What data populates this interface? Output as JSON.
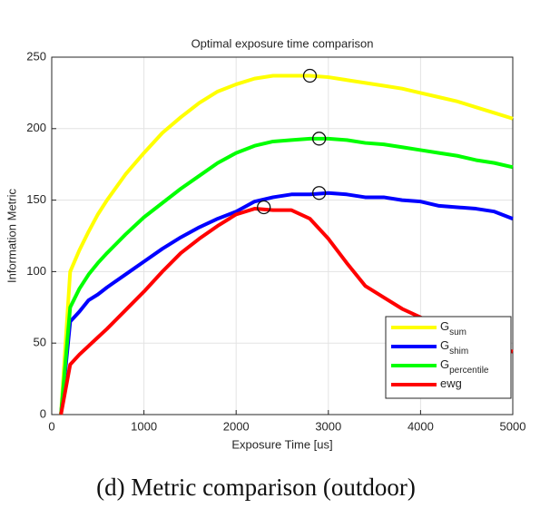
{
  "chart_data": {
    "type": "line",
    "title": "Optimal exposure time comparison",
    "x_label": "Exposure Time [us]",
    "y_label": "Information Metric",
    "caption": "(d) Metric comparison (outdoor)",
    "x": [
      100,
      200,
      300,
      400,
      500,
      600,
      800,
      1000,
      1200,
      1400,
      1600,
      1800,
      2000,
      2200,
      2400,
      2600,
      2800,
      3000,
      3200,
      3400,
      3600,
      3800,
      4000,
      4200,
      4400,
      4600,
      4800,
      5000
    ],
    "series": [
      {
        "name": "G",
        "name_subscript": "sum",
        "color": "#ffff00",
        "values": [
          0,
          100,
          115,
          128,
          140,
          150,
          168,
          183,
          197,
          208,
          218,
          226,
          231,
          235,
          237,
          237,
          237,
          236,
          234,
          232,
          230,
          228,
          225,
          222,
          219,
          215,
          211,
          207
        ]
      },
      {
        "name": "G",
        "name_subscript": "shim",
        "color": "#0000ff",
        "values": [
          0,
          65,
          72,
          80,
          84,
          89,
          98,
          107,
          116,
          124,
          131,
          137,
          142,
          149,
          152,
          154,
          154,
          155,
          154,
          152,
          152,
          150,
          149,
          146,
          145,
          144,
          142,
          137
        ]
      },
      {
        "name": "G",
        "name_subscript": "percentile",
        "color": "#00ff00",
        "values": [
          0,
          75,
          88,
          98,
          106,
          113,
          126,
          138,
          148,
          158,
          167,
          176,
          183,
          188,
          191,
          192,
          193,
          193,
          192,
          190,
          189,
          187,
          185,
          183,
          181,
          178,
          176,
          173
        ]
      },
      {
        "name": "ewg",
        "color": "#ff0000",
        "values": [
          0,
          35,
          42,
          48,
          54,
          60,
          73,
          86,
          100,
          113,
          123,
          132,
          140,
          144,
          143,
          143,
          137,
          123,
          106,
          90,
          82,
          74,
          68,
          63,
          57,
          53,
          48,
          44
        ]
      }
    ],
    "markers": [
      {
        "x": 2800,
        "y": 237
      },
      {
        "x": 2900,
        "y": 193
      },
      {
        "x": 2900,
        "y": 155
      },
      {
        "x": 2300,
        "y": 145
      }
    ],
    "xlim": [
      0,
      5000
    ],
    "xticks": [
      0,
      1000,
      2000,
      3000,
      4000,
      5000
    ],
    "ylim": [
      0,
      250
    ],
    "yticks": [
      0,
      50,
      100,
      150,
      200,
      250
    ],
    "grid": true,
    "legend": "lower-right"
  }
}
